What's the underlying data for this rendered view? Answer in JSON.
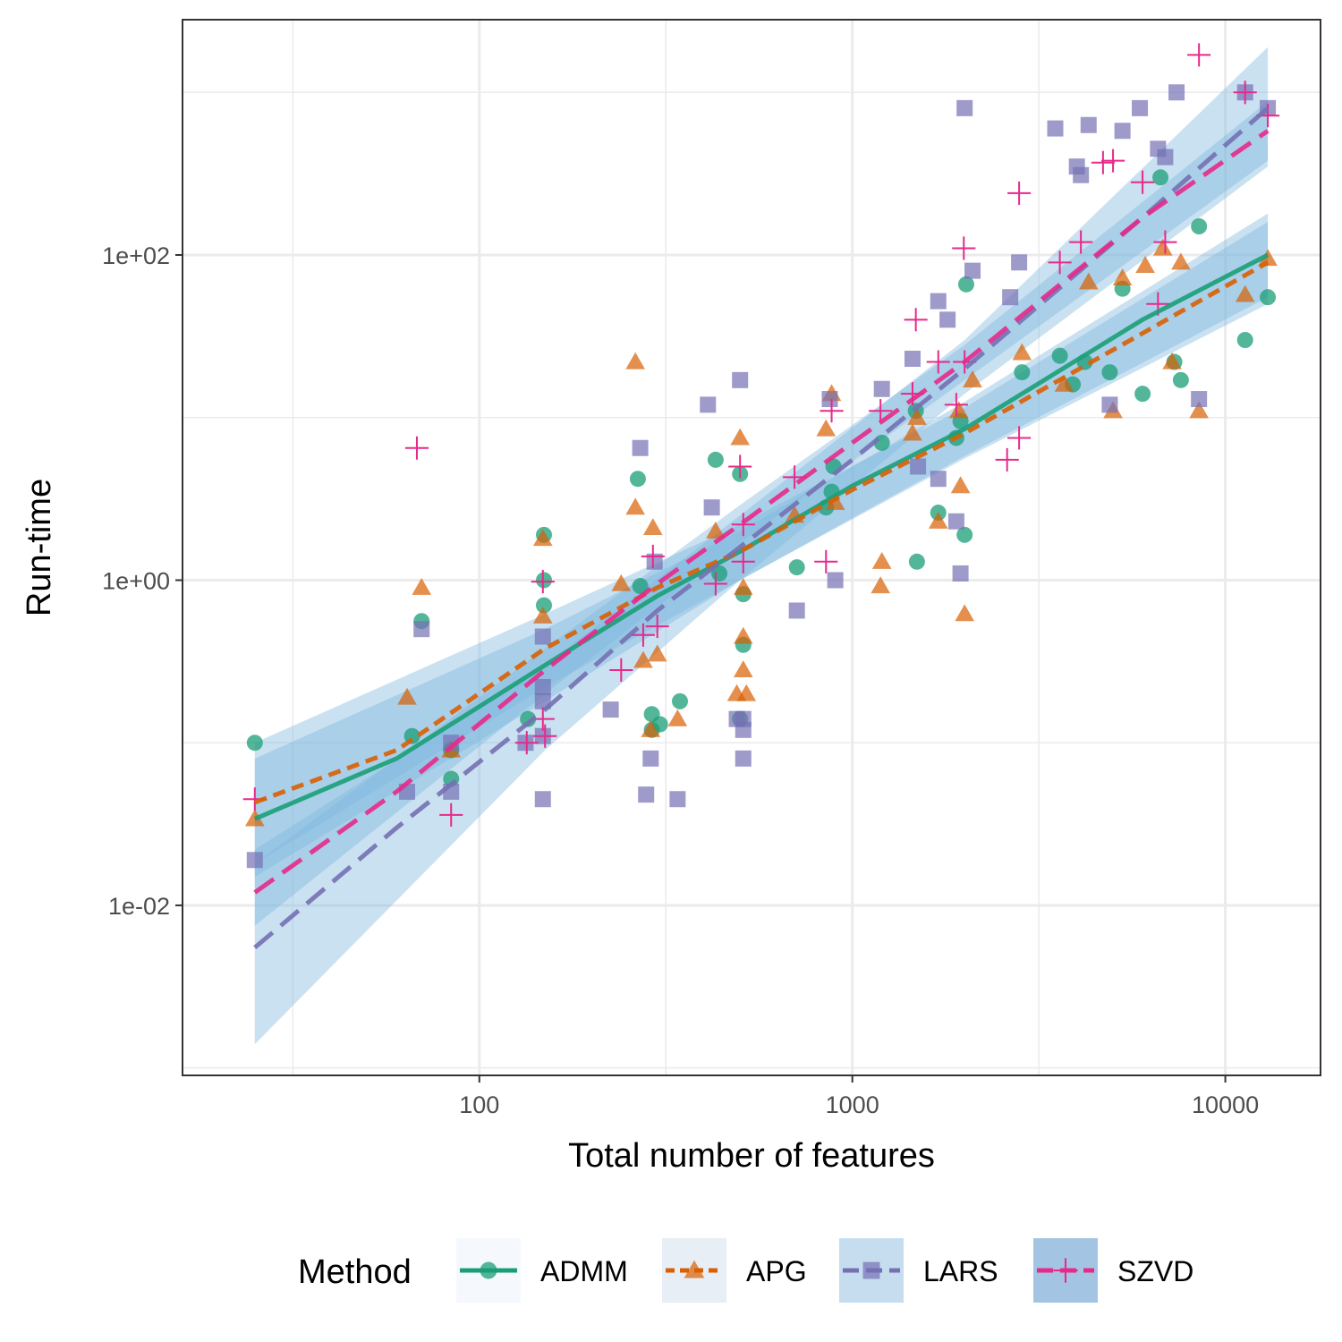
{
  "chart_data": {
    "type": "scatter",
    "xlabel": "Total number of features",
    "ylabel": "Run-time",
    "x_scale": "log10",
    "y_scale": "log10",
    "xlim": [
      16,
      18000
    ],
    "ylim": [
      0.0009,
      2800
    ],
    "x_ticks": [
      100,
      1000,
      10000
    ],
    "x_tick_labels": [
      "100",
      "1000",
      "10000"
    ],
    "y_ticks": [
      0.01,
      1,
      100
    ],
    "y_tick_labels": [
      "1e-02",
      "1e+00",
      "1e+02"
    ],
    "grid": true,
    "legend": {
      "title": "Method",
      "position": "bottom",
      "entries": [
        "ADMM",
        "APG",
        "LARS",
        "SZVD"
      ]
    },
    "colors": {
      "ADMM": "#1b9e77",
      "APG": "#d95f02",
      "LARS": "#7570b3",
      "SZVD": "#e7298a",
      "ribbon": "#7fb8de"
    },
    "series": [
      {
        "name": "ADMM",
        "marker": "circle",
        "line": "solid",
        "fit": [
          [
            25,
            0.034
          ],
          [
            60,
            0.08
          ],
          [
            150,
            0.3
          ],
          [
            300,
            0.8
          ],
          [
            500,
            1.5
          ],
          [
            1000,
            3.8
          ],
          [
            2000,
            8.5
          ],
          [
            6000,
            40
          ],
          [
            13000,
            100
          ]
        ],
        "band": [
          [
            25,
            0.015,
            0.08
          ],
          [
            150,
            0.18,
            0.5
          ],
          [
            500,
            1.0,
            2.0
          ],
          [
            2000,
            5.8,
            12.5
          ],
          [
            13000,
            55,
            180
          ]
        ],
        "points": [
          [
            25,
            0.1
          ],
          [
            66,
            0.11
          ],
          [
            70,
            0.56
          ],
          [
            84,
            0.09
          ],
          [
            84,
            0.06
          ],
          [
            135,
            0.14
          ],
          [
            149,
            1.9
          ],
          [
            149,
            1.0
          ],
          [
            149,
            0.7
          ],
          [
            270,
            0.92
          ],
          [
            266,
            4.2
          ],
          [
            290,
            0.15
          ],
          [
            290,
            0.12
          ],
          [
            305,
            0.13
          ],
          [
            345,
            0.18
          ],
          [
            430,
            5.5
          ],
          [
            440,
            1.1
          ],
          [
            500,
            0.14
          ],
          [
            500,
            4.5
          ],
          [
            510,
            0.82
          ],
          [
            510,
            0.4
          ],
          [
            710,
            1.2
          ],
          [
            850,
            2.8
          ],
          [
            880,
            3.5
          ],
          [
            890,
            5.0
          ],
          [
            1200,
            7.0
          ],
          [
            1480,
            11
          ],
          [
            1490,
            1.3
          ],
          [
            1700,
            2.6
          ],
          [
            1900,
            7.5
          ],
          [
            1950,
            9.5
          ],
          [
            2000,
            1.9
          ],
          [
            2020,
            66
          ],
          [
            2850,
            19
          ],
          [
            3600,
            24
          ],
          [
            3900,
            16
          ],
          [
            4200,
            22
          ],
          [
            4900,
            19
          ],
          [
            5300,
            62
          ],
          [
            6000,
            14
          ],
          [
            6700,
            300
          ],
          [
            7300,
            22
          ],
          [
            7600,
            17
          ],
          [
            8500,
            150
          ],
          [
            11300,
            30
          ],
          [
            13000,
            55
          ]
        ]
      },
      {
        "name": "APG",
        "marker": "triangle",
        "line": "dotted",
        "fit": [
          [
            25,
            0.043
          ],
          [
            60,
            0.09
          ],
          [
            150,
            0.38
          ],
          [
            300,
            0.9
          ],
          [
            500,
            1.5
          ],
          [
            1000,
            3.6
          ],
          [
            2000,
            8.0
          ],
          [
            6000,
            33
          ],
          [
            13000,
            90
          ]
        ],
        "band": [
          [
            25,
            0.018,
            0.1
          ],
          [
            150,
            0.22,
            0.62
          ],
          [
            500,
            1.0,
            2.2
          ],
          [
            2000,
            5.6,
            11.5
          ],
          [
            13000,
            50,
            160
          ]
        ],
        "points": [
          [
            25,
            0.034
          ],
          [
            64,
            0.19
          ],
          [
            70,
            0.9
          ],
          [
            84,
            0.09
          ],
          [
            148,
            1.8
          ],
          [
            148,
            0.6
          ],
          [
            240,
            0.95
          ],
          [
            262,
            22
          ],
          [
            262,
            2.8
          ],
          [
            275,
            0.32
          ],
          [
            288,
            0.12
          ],
          [
            292,
            2.1
          ],
          [
            300,
            0.35
          ],
          [
            340,
            0.14
          ],
          [
            430,
            2.0
          ],
          [
            490,
            0.2
          ],
          [
            500,
            7.5
          ],
          [
            510,
            0.9
          ],
          [
            510,
            0.45
          ],
          [
            510,
            0.28
          ],
          [
            520,
            0.2
          ],
          [
            700,
            2.5
          ],
          [
            850,
            8.5
          ],
          [
            880,
            14
          ],
          [
            900,
            3.0
          ],
          [
            1190,
            0.92
          ],
          [
            1200,
            1.3
          ],
          [
            1450,
            8.0
          ],
          [
            1490,
            10
          ],
          [
            1700,
            2.3
          ],
          [
            1930,
            11
          ],
          [
            1950,
            3.8
          ],
          [
            2000,
            0.62
          ],
          [
            2100,
            17
          ],
          [
            2850,
            25
          ],
          [
            3700,
            16
          ],
          [
            4300,
            68
          ],
          [
            5000,
            11
          ],
          [
            5300,
            72
          ],
          [
            6100,
            86
          ],
          [
            6800,
            110
          ],
          [
            7200,
            22
          ],
          [
            7600,
            90
          ],
          [
            8500,
            11
          ],
          [
            11300,
            57
          ],
          [
            13000,
            95
          ]
        ]
      },
      {
        "name": "LARS",
        "marker": "square",
        "line": "dashed",
        "fit": [
          [
            25,
            0.0055
          ],
          [
            60,
            0.03
          ],
          [
            150,
            0.16
          ],
          [
            300,
            0.65
          ],
          [
            500,
            1.6
          ],
          [
            1000,
            5.5
          ],
          [
            2000,
            20
          ],
          [
            6000,
            170
          ],
          [
            13000,
            800
          ]
        ],
        "band": [
          [
            25,
            0.0014,
            0.022
          ],
          [
            150,
            0.09,
            0.3
          ],
          [
            500,
            1.0,
            2.5
          ],
          [
            2000,
            14,
            30
          ],
          [
            13000,
            350,
            1900
          ]
        ],
        "points": [
          [
            25,
            0.019
          ],
          [
            64,
            0.05
          ],
          [
            70,
            0.5
          ],
          [
            84,
            0.1
          ],
          [
            84,
            0.05
          ],
          [
            133,
            0.1
          ],
          [
            148,
            0.11
          ],
          [
            148,
            0.18
          ],
          [
            148,
            0.045
          ],
          [
            148,
            0.22
          ],
          [
            148,
            0.45
          ],
          [
            225,
            0.16
          ],
          [
            270,
            6.5
          ],
          [
            280,
            0.048
          ],
          [
            288,
            0.08
          ],
          [
            295,
            1.3
          ],
          [
            340,
            0.045
          ],
          [
            410,
            12
          ],
          [
            420,
            2.8
          ],
          [
            490,
            0.14
          ],
          [
            500,
            17
          ],
          [
            510,
            0.14
          ],
          [
            510,
            0.12
          ],
          [
            510,
            0.08
          ],
          [
            710,
            0.65
          ],
          [
            870,
            13
          ],
          [
            900,
            1.0
          ],
          [
            1200,
            15
          ],
          [
            1450,
            23
          ],
          [
            1500,
            5.0
          ],
          [
            1700,
            4.2
          ],
          [
            1700,
            52
          ],
          [
            1800,
            40
          ],
          [
            1900,
            2.3
          ],
          [
            1950,
            1.1
          ],
          [
            2000,
            800
          ],
          [
            2100,
            80
          ],
          [
            2650,
            55
          ],
          [
            2800,
            90
          ],
          [
            3500,
            600
          ],
          [
            4000,
            350
          ],
          [
            4100,
            310
          ],
          [
            4300,
            630
          ],
          [
            4900,
            12
          ],
          [
            5300,
            580
          ],
          [
            5900,
            800
          ],
          [
            6600,
            450
          ],
          [
            6900,
            400
          ],
          [
            7400,
            1000
          ],
          [
            8500,
            13
          ],
          [
            11300,
            1000
          ],
          [
            13000,
            800
          ]
        ]
      },
      {
        "name": "SZVD",
        "marker": "plus",
        "line": "dashed",
        "fit": [
          [
            25,
            0.012
          ],
          [
            60,
            0.05
          ],
          [
            150,
            0.28
          ],
          [
            300,
            0.95
          ],
          [
            500,
            2.2
          ],
          [
            1000,
            7.0
          ],
          [
            2000,
            22
          ],
          [
            6000,
            170
          ],
          [
            13000,
            580
          ]
        ],
        "band": [
          [
            25,
            0.0075,
            0.018
          ],
          [
            150,
            0.2,
            0.38
          ],
          [
            500,
            1.7,
            2.9
          ],
          [
            2000,
            17,
            28
          ],
          [
            13000,
            380,
            880
          ]
        ],
        "points": [
          [
            25,
            0.045
          ],
          [
            68,
            6.5
          ],
          [
            84,
            0.036
          ],
          [
            134,
            0.1
          ],
          [
            148,
            0.98
          ],
          [
            148,
            0.14
          ],
          [
            150,
            0.11
          ],
          [
            240,
            0.28
          ],
          [
            275,
            0.46
          ],
          [
            292,
            1.4
          ],
          [
            300,
            0.52
          ],
          [
            430,
            0.95
          ],
          [
            500,
            5.0
          ],
          [
            510,
            2.2
          ],
          [
            510,
            1.3
          ],
          [
            700,
            4.3
          ],
          [
            850,
            1.3
          ],
          [
            880,
            11
          ],
          [
            1190,
            11
          ],
          [
            1450,
            14
          ],
          [
            1480,
            40
          ],
          [
            1700,
            22
          ],
          [
            1900,
            12
          ],
          [
            1990,
            110
          ],
          [
            2000,
            22
          ],
          [
            2600,
            5.5
          ],
          [
            2800,
            7.5
          ],
          [
            2800,
            240
          ],
          [
            3600,
            90
          ],
          [
            4100,
            120
          ],
          [
            4700,
            370
          ],
          [
            5000,
            380
          ],
          [
            6000,
            280
          ],
          [
            6600,
            50
          ],
          [
            6900,
            120
          ],
          [
            8500,
            1700
          ],
          [
            11300,
            1000
          ],
          [
            13000,
            720
          ]
        ]
      }
    ]
  }
}
